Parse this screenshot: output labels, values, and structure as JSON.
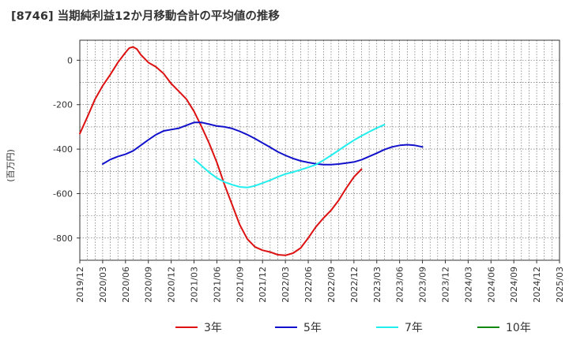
{
  "title": "[8746]  当期純利益12か月移動合計の平均値の推移",
  "chart_data": {
    "type": "line",
    "ylabel": "(百万円)",
    "ylim": [
      -900,
      90
    ],
    "yticks": [
      0,
      -200,
      -400,
      -600,
      -800
    ],
    "xlabels": [
      "2019/12",
      "2020/03",
      "2020/06",
      "2020/09",
      "2020/12",
      "2021/03",
      "2021/06",
      "2021/09",
      "2021/12",
      "2022/03",
      "2022/06",
      "2022/09",
      "2022/12",
      "2023/03",
      "2023/06",
      "2023/09",
      "2023/12",
      "2024/03",
      "2024/06",
      "2024/09",
      "2024/12",
      "2025/03"
    ],
    "grid": true,
    "legend_position": "bottom",
    "series": [
      {
        "name": "3年",
        "color": "#dd1111",
        "points": [
          [
            0,
            -330
          ],
          [
            1,
            -255
          ],
          [
            2,
            -175
          ],
          [
            3,
            -115
          ],
          [
            4,
            -65
          ],
          [
            5,
            -10
          ],
          [
            6,
            35
          ],
          [
            6.5,
            55
          ],
          [
            7,
            60
          ],
          [
            7.5,
            50
          ],
          [
            8,
            25
          ],
          [
            9,
            -10
          ],
          [
            10,
            -30
          ],
          [
            11,
            -60
          ],
          [
            12,
            -105
          ],
          [
            13,
            -140
          ],
          [
            14,
            -175
          ],
          [
            15,
            -230
          ],
          [
            16,
            -300
          ],
          [
            17,
            -375
          ],
          [
            18,
            -460
          ],
          [
            19,
            -560
          ],
          [
            20,
            -650
          ],
          [
            21,
            -740
          ],
          [
            22,
            -805
          ],
          [
            23,
            -840
          ],
          [
            24,
            -855
          ],
          [
            25,
            -863
          ],
          [
            26,
            -875
          ],
          [
            27,
            -878
          ],
          [
            28,
            -868
          ],
          [
            29,
            -845
          ],
          [
            30,
            -800
          ],
          [
            31,
            -750
          ],
          [
            32,
            -710
          ],
          [
            33,
            -675
          ],
          [
            34,
            -630
          ],
          [
            35,
            -575
          ],
          [
            36,
            -525
          ],
          [
            37,
            -490
          ]
        ]
      },
      {
        "name": "5年",
        "color": "#1111cc",
        "points": [
          [
            3,
            -467
          ],
          [
            4,
            -447
          ],
          [
            5,
            -433
          ],
          [
            6,
            -423
          ],
          [
            7,
            -408
          ],
          [
            8,
            -383
          ],
          [
            9,
            -358
          ],
          [
            10,
            -335
          ],
          [
            11,
            -318
          ],
          [
            12,
            -312
          ],
          [
            13,
            -306
          ],
          [
            14,
            -293
          ],
          [
            15,
            -280
          ],
          [
            16,
            -280
          ],
          [
            17,
            -288
          ],
          [
            18,
            -296
          ],
          [
            19,
            -300
          ],
          [
            20,
            -307
          ],
          [
            21,
            -320
          ],
          [
            22,
            -335
          ],
          [
            23,
            -353
          ],
          [
            24,
            -372
          ],
          [
            25,
            -392
          ],
          [
            26,
            -412
          ],
          [
            27,
            -428
          ],
          [
            28,
            -442
          ],
          [
            29,
            -453
          ],
          [
            30,
            -460
          ],
          [
            31,
            -466
          ],
          [
            32,
            -470
          ],
          [
            33,
            -470
          ],
          [
            34,
            -467
          ],
          [
            35,
            -463
          ],
          [
            36,
            -458
          ],
          [
            37,
            -448
          ],
          [
            38,
            -433
          ],
          [
            39,
            -418
          ],
          [
            40,
            -402
          ],
          [
            41,
            -390
          ],
          [
            42,
            -383
          ],
          [
            43,
            -380
          ],
          [
            44,
            -383
          ],
          [
            45,
            -390
          ]
        ]
      },
      {
        "name": "7年",
        "color": "#22eeee",
        "points": [
          [
            15,
            -445
          ],
          [
            16,
            -475
          ],
          [
            17,
            -505
          ],
          [
            18,
            -530
          ],
          [
            19,
            -548
          ],
          [
            20,
            -560
          ],
          [
            21,
            -570
          ],
          [
            22,
            -573
          ],
          [
            23,
            -565
          ],
          [
            24,
            -553
          ],
          [
            25,
            -540
          ],
          [
            26,
            -525
          ],
          [
            27,
            -512
          ],
          [
            28,
            -503
          ],
          [
            29,
            -493
          ],
          [
            30,
            -482
          ],
          [
            31,
            -470
          ],
          [
            32,
            -450
          ],
          [
            33,
            -428
          ],
          [
            34,
            -405
          ],
          [
            35,
            -382
          ],
          [
            36,
            -360
          ],
          [
            37,
            -340
          ],
          [
            38,
            -322
          ],
          [
            39,
            -305
          ],
          [
            40,
            -290
          ]
        ]
      },
      {
        "name": "10年",
        "color": "#118811",
        "points": []
      }
    ]
  }
}
